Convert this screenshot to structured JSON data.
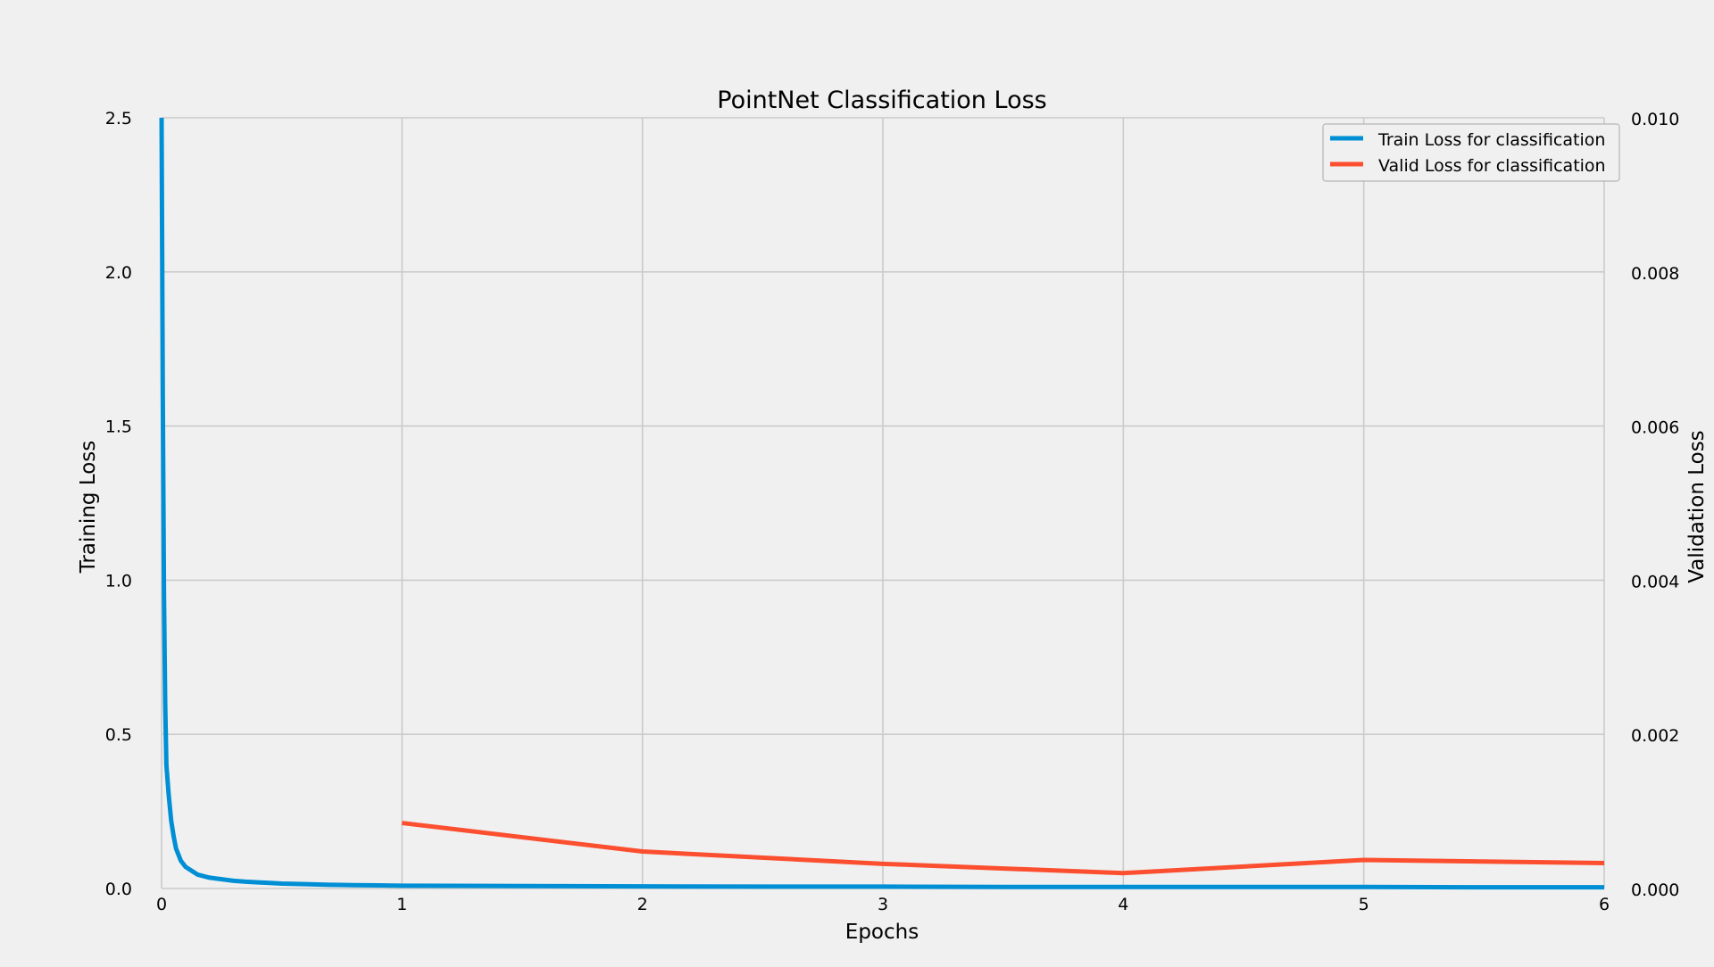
{
  "chart_data": {
    "type": "line",
    "title": "PointNet Classification Loss",
    "xlabel": "Epochs",
    "ylabel": "Training Loss",
    "y2label": "Validation Loss",
    "xlim": [
      0,
      6
    ],
    "ylim": [
      0,
      2.5
    ],
    "y2lim": [
      0,
      0.01
    ],
    "xticks": [
      "0",
      "1",
      "2",
      "3",
      "4",
      "5",
      "6"
    ],
    "yticks": [
      "0.0",
      "0.5",
      "1.0",
      "1.5",
      "2.0",
      "2.5"
    ],
    "y2ticks": [
      "0.000",
      "0.002",
      "0.004",
      "0.006",
      "0.008",
      "0.010"
    ],
    "grid": true,
    "legend_position": "top-right",
    "series": [
      {
        "name": "Train Loss for classification",
        "axis": "left",
        "color": "#008fd5",
        "x": [
          0,
          0.005,
          0.01,
          0.015,
          0.02,
          0.03,
          0.04,
          0.05,
          0.06,
          0.08,
          0.1,
          0.12,
          0.15,
          0.2,
          0.25,
          0.3,
          0.35,
          0.4,
          0.45,
          0.5,
          0.6,
          0.7,
          0.8,
          0.9,
          1.0,
          1.5,
          2.0,
          2.5,
          3.0,
          3.5,
          4.0,
          4.5,
          5.0,
          5.5,
          6.0
        ],
        "values": [
          2.5,
          1.6,
          0.95,
          0.6,
          0.4,
          0.3,
          0.22,
          0.17,
          0.13,
          0.09,
          0.07,
          0.06,
          0.045,
          0.035,
          0.03,
          0.025,
          0.022,
          0.02,
          0.018,
          0.016,
          0.014,
          0.012,
          0.011,
          0.01,
          0.009,
          0.008,
          0.007,
          0.006,
          0.006,
          0.005,
          0.005,
          0.005,
          0.005,
          0.004,
          0.004
        ]
      },
      {
        "name": "Valid Loss for classification",
        "axis": "right",
        "color": "#fc4f30",
        "x": [
          1,
          2,
          3,
          4,
          5,
          6
        ],
        "values": [
          0.00085,
          0.00048,
          0.00032,
          0.0002,
          0.00037,
          0.00033
        ]
      }
    ]
  }
}
